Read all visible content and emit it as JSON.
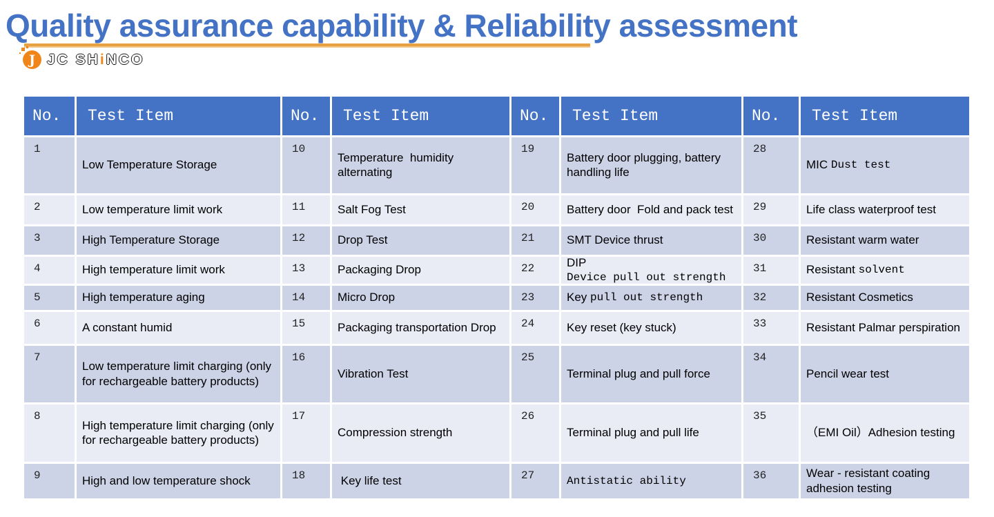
{
  "title": "Quality assurance capability & Reliability assessment",
  "logo": {
    "icon_glyph": "J",
    "brand_prefix": "JC SH",
    "brand_i": "i",
    "brand_suffix": "NCO"
  },
  "colors": {
    "accent_blue": "#4472C4",
    "band_dark": "#CDD3E7",
    "band_light": "#E9EBF5",
    "logo_orange": "#F0861A",
    "rule_orange": "#E8A140"
  },
  "table": {
    "header_no": "No.",
    "header_item": "Test Item",
    "groups": [
      {
        "rows": [
          {
            "no": "1",
            "segments": [
              {
                "text": "Low Temperature Storage",
                "font": "sans"
              }
            ]
          },
          {
            "no": "2",
            "segments": [
              {
                "text": "Low temperature limit work",
                "font": "sans"
              }
            ]
          },
          {
            "no": "3",
            "segments": [
              {
                "text": "High Temperature Storage",
                "font": "sans"
              }
            ]
          },
          {
            "no": "4",
            "segments": [
              {
                "text": "High temperature limit work",
                "font": "sans"
              }
            ]
          },
          {
            "no": "5",
            "segments": [
              {
                "text": "High temperature aging",
                "font": "sans"
              }
            ]
          },
          {
            "no": "6",
            "segments": [
              {
                "text": "A constant humid",
                "font": "sans"
              }
            ]
          },
          {
            "no": "7",
            "segments": [
              {
                "text": "Low temperature limit charging (only for rechargeable battery products)",
                "font": "sans"
              }
            ]
          },
          {
            "no": "8",
            "segments": [
              {
                "text": "High temperature limit charging (only for rechargeable battery products)",
                "font": "sans"
              }
            ]
          },
          {
            "no": "9",
            "segments": [
              {
                "text": "High and low temperature shock",
                "font": "sans"
              }
            ]
          }
        ]
      },
      {
        "rows": [
          {
            "no": "10",
            "segments": [
              {
                "text": "Temperature  humidity alternating",
                "font": "sans"
              }
            ]
          },
          {
            "no": "11",
            "segments": [
              {
                "text": "Salt Fog Test",
                "font": "sans"
              }
            ]
          },
          {
            "no": "12",
            "segments": [
              {
                "text": "Drop Test",
                "font": "sans"
              }
            ]
          },
          {
            "no": "13",
            "segments": [
              {
                "text": "Packaging Drop",
                "font": "sans"
              }
            ]
          },
          {
            "no": "14",
            "segments": [
              {
                "text": "Micro Drop",
                "font": "sans"
              }
            ]
          },
          {
            "no": "15",
            "segments": [
              {
                "text": "Packaging transportation Drop",
                "font": "sans"
              }
            ]
          },
          {
            "no": "16",
            "segments": [
              {
                "text": "Vibration Test",
                "font": "sans"
              }
            ]
          },
          {
            "no": "17",
            "segments": [
              {
                "text": "Compression strength",
                "font": "sans"
              }
            ]
          },
          {
            "no": "18",
            "segments": [
              {
                "text": " Key life test",
                "font": "sans"
              }
            ]
          }
        ]
      },
      {
        "rows": [
          {
            "no": "19",
            "segments": [
              {
                "text": "Battery door plugging, battery handling life",
                "font": "sans"
              }
            ]
          },
          {
            "no": "20",
            "segments": [
              {
                "text": "Battery door  Fold and pack test",
                "font": "sans"
              }
            ]
          },
          {
            "no": "21",
            "segments": [
              {
                "text": "SMT Device thrust",
                "font": "sans"
              }
            ]
          },
          {
            "no": "22",
            "segments": [
              {
                "text": "DIP ",
                "font": "sans"
              },
              {
                "text": "Device pull out strength",
                "font": "mono"
              }
            ]
          },
          {
            "no": "23",
            "segments": [
              {
                "text": "Key ",
                "font": "sans"
              },
              {
                "text": "pull out strength",
                "font": "mono"
              }
            ]
          },
          {
            "no": "24",
            "segments": [
              {
                "text": "Key reset (key stuck)",
                "font": "sans"
              }
            ]
          },
          {
            "no": "25",
            "segments": [
              {
                "text": "Terminal plug and pull force",
                "font": "sans"
              }
            ]
          },
          {
            "no": "26",
            "segments": [
              {
                "text": "Terminal plug and pull life",
                "font": "sans"
              }
            ]
          },
          {
            "no": "27",
            "segments": [
              {
                "text": "Antistatic ability",
                "font": "mono"
              }
            ]
          }
        ]
      },
      {
        "rows": [
          {
            "no": "28",
            "segments": [
              {
                "text": "MIC ",
                "font": "sans"
              },
              {
                "text": "Dust test",
                "font": "mono"
              }
            ]
          },
          {
            "no": "29",
            "segments": [
              {
                "text": "Life class waterproof test",
                "font": "sans"
              }
            ]
          },
          {
            "no": "30",
            "segments": [
              {
                "text": "Resistant warm water",
                "font": "sans"
              }
            ]
          },
          {
            "no": "31",
            "segments": [
              {
                "text": "Resistant ",
                "font": "sans"
              },
              {
                "text": "solvent",
                "font": "mono"
              }
            ]
          },
          {
            "no": "32",
            "segments": [
              {
                "text": "Resistant Cosmetics",
                "font": "sans"
              }
            ]
          },
          {
            "no": "33",
            "segments": [
              {
                "text": "Resistant Palmar perspiration",
                "font": "sans"
              }
            ]
          },
          {
            "no": "34",
            "segments": [
              {
                "text": "Pencil wear test",
                "font": "sans"
              }
            ]
          },
          {
            "no": "35",
            "segments": [
              {
                "text": "（EMI Oil）Adhesion testing",
                "font": "sans"
              }
            ]
          },
          {
            "no": "36",
            "segments": [
              {
                "text": "Wear - resistant coating adhesion testing",
                "font": "sans"
              }
            ]
          }
        ]
      }
    ]
  }
}
